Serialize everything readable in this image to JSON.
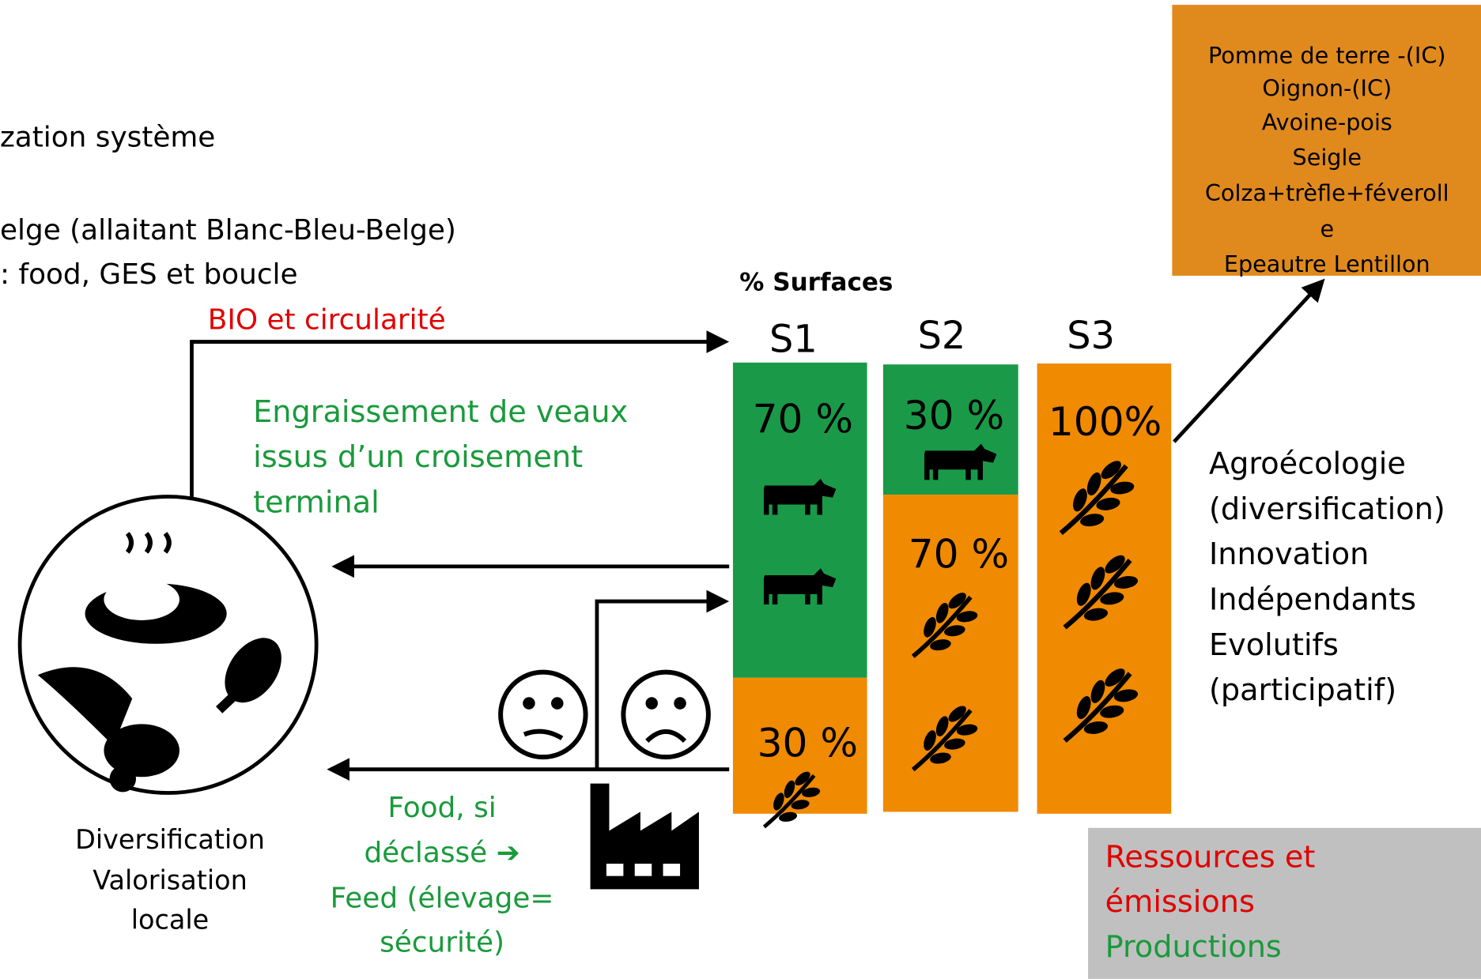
{
  "header": {
    "lines": [
      "zation système",
      "elge (allaitant Blanc-Bleu-Belge)",
      ": food, GES et boucle"
    ]
  },
  "arrows": {
    "bio": "BIO et circularité",
    "engraissement": [
      "Engraissement de veaux",
      "issus d’un croisement",
      "terminal"
    ],
    "food": [
      "Food, si",
      "déclassé ➔",
      "Feed (élevage=",
      "sécurité)"
    ]
  },
  "surfaces": {
    "title": "% Surfaces",
    "columns": [
      {
        "label": "S1",
        "segments": [
          "70 %",
          "30 %"
        ]
      },
      {
        "label": "S2",
        "segments": [
          "30 %",
          "70 %"
        ]
      },
      {
        "label": "S3",
        "segments": [
          "100%"
        ]
      }
    ]
  },
  "crops": [
    "Pomme de terre -(IC)",
    "Oignon-(IC)",
    "Avoine-pois",
    "Seigle",
    "Colza+trèfle+féveroll",
    "e",
    "Epeautre Lentillon"
  ],
  "principles": [
    "Agroécologie",
    "(diversification)",
    "Innovation",
    "Indépendants",
    "Evolutifs",
    "(participatif)"
  ],
  "circle_caption": [
    "Diversification",
    "Valorisation",
    "locale"
  ],
  "legend": {
    "resources": [
      "Ressources et",
      "émissions"
    ],
    "productions": "Productions"
  }
}
